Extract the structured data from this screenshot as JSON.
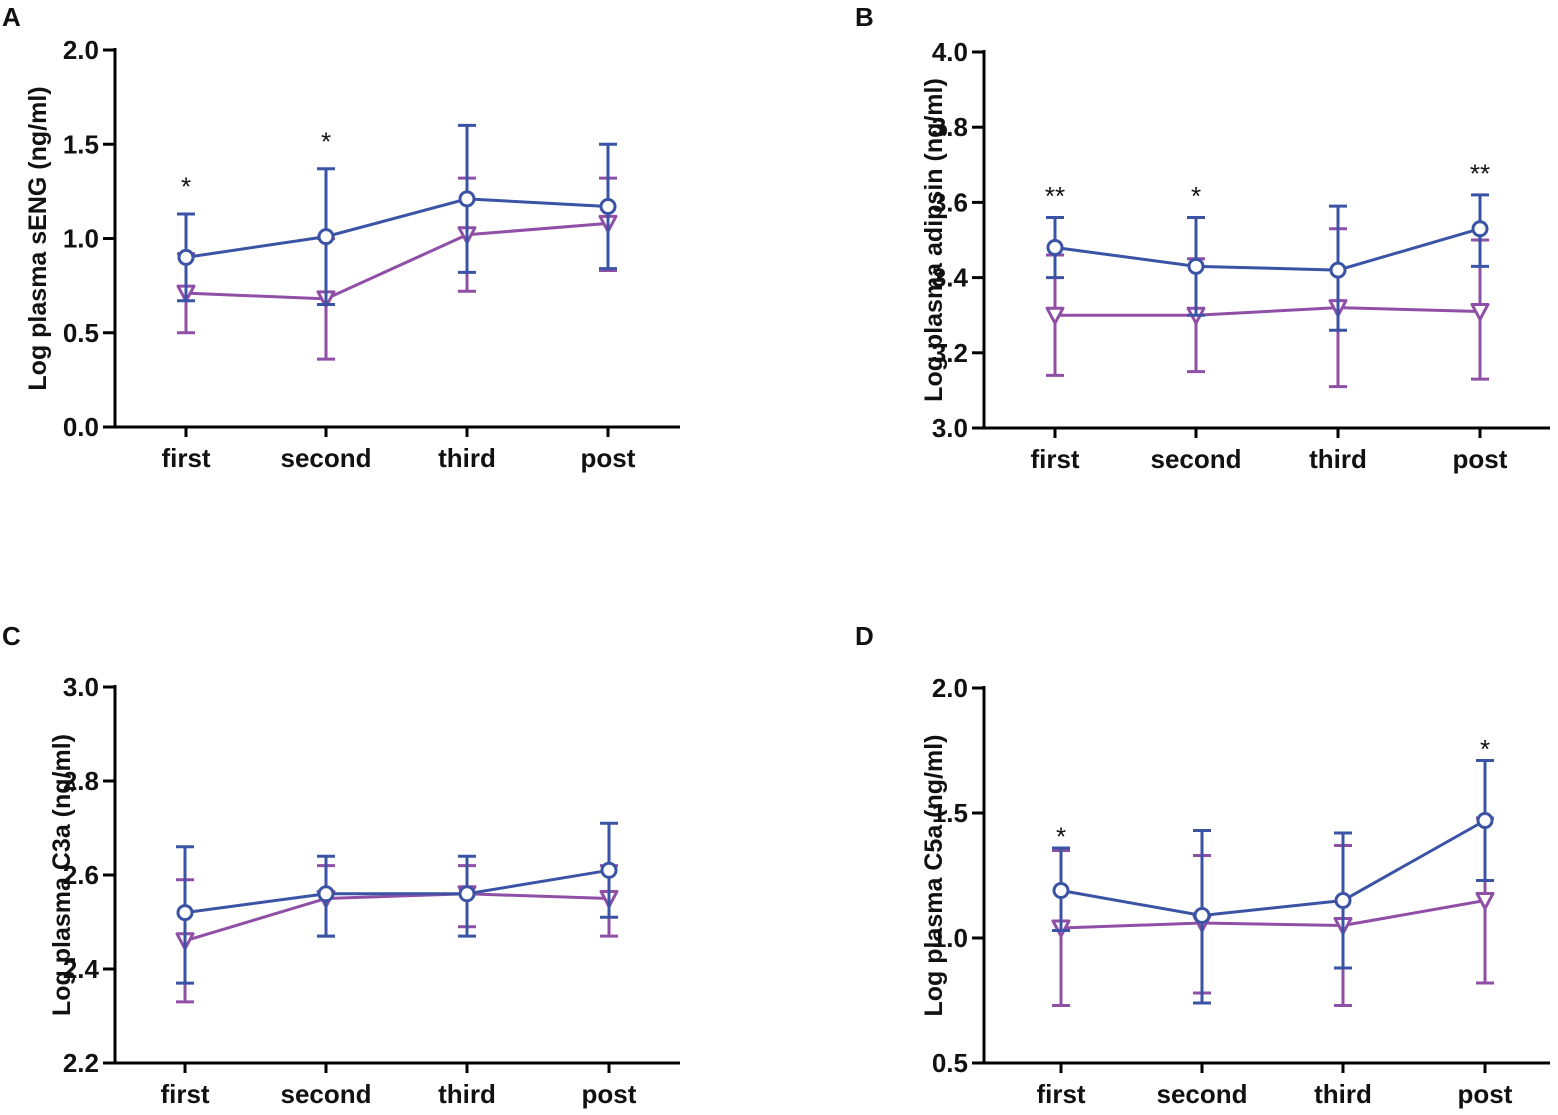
{
  "colors": {
    "series1": "#3a53a4",
    "series2": "#8f4fa6",
    "axis": "#000000"
  },
  "chart_data": [
    {
      "panel": "A",
      "type": "line",
      "categories": [
        "first",
        "second",
        "third",
        "post"
      ],
      "ylabel": "Log plasma sENG (ng/ml)",
      "ylim": [
        0.0,
        2.0
      ],
      "yticks": [
        0.0,
        0.5,
        1.0,
        1.5,
        2.0
      ],
      "ytick_labels": [
        "0.0",
        "0.5",
        "1.0",
        "1.5",
        "2.0"
      ],
      "series": [
        {
          "name": "series1",
          "marker": "circle",
          "values": [
            0.9,
            1.01,
            1.21,
            1.17
          ],
          "err_low": [
            0.67,
            0.65,
            0.82,
            0.84
          ],
          "err_high": [
            1.13,
            1.37,
            1.6,
            1.5
          ]
        },
        {
          "name": "series2",
          "marker": "triangle-down",
          "values": [
            0.71,
            0.68,
            1.02,
            1.08
          ],
          "err_low": [
            0.5,
            0.36,
            0.72,
            0.83
          ],
          "err_high": [
            0.92,
            1.0,
            1.32,
            1.32
          ]
        }
      ],
      "annotations": [
        {
          "category": "first",
          "text": "*",
          "y": 1.28
        },
        {
          "category": "second",
          "text": "*",
          "y": 1.52
        }
      ]
    },
    {
      "panel": "B",
      "type": "line",
      "categories": [
        "first",
        "second",
        "third",
        "post"
      ],
      "ylabel": "Log plasma adipsin (ng/ml)",
      "ylim": [
        3.0,
        4.0
      ],
      "yticks": [
        3.0,
        3.2,
        3.4,
        3.6,
        3.8,
        4.0
      ],
      "ytick_labels": [
        "3.0",
        "3.2",
        "3.4",
        "3.6",
        "3.8",
        "4.0"
      ],
      "series": [
        {
          "name": "series1",
          "marker": "circle",
          "values": [
            3.48,
            3.43,
            3.42,
            3.53
          ],
          "err_low": [
            3.4,
            3.3,
            3.26,
            3.43
          ],
          "err_high": [
            3.56,
            3.56,
            3.59,
            3.62
          ]
        },
        {
          "name": "series2",
          "marker": "triangle-down",
          "values": [
            3.3,
            3.3,
            3.32,
            3.31
          ],
          "err_low": [
            3.14,
            3.15,
            3.11,
            3.13
          ],
          "err_high": [
            3.46,
            3.45,
            3.53,
            3.5
          ]
        }
      ],
      "annotations": [
        {
          "category": "first",
          "text": "**",
          "y": 3.62
        },
        {
          "category": "second",
          "text": "*",
          "y": 3.62
        },
        {
          "category": "post",
          "text": "**",
          "y": 3.68
        }
      ]
    },
    {
      "panel": "C",
      "type": "line",
      "categories": [
        "first",
        "second",
        "third",
        "post"
      ],
      "ylabel": "Log plasma C3a (ng/ml)",
      "ylim": [
        2.2,
        3.0
      ],
      "yticks": [
        2.2,
        2.4,
        2.6,
        2.8,
        3.0
      ],
      "ytick_labels": [
        "2.2",
        "2.4",
        "2.6",
        "2.8",
        "3.0"
      ],
      "series": [
        {
          "name": "series1",
          "marker": "circle",
          "values": [
            2.52,
            2.56,
            2.56,
            2.61
          ],
          "err_low": [
            2.37,
            2.47,
            2.47,
            2.51
          ],
          "err_high": [
            2.66,
            2.64,
            2.64,
            2.71
          ]
        },
        {
          "name": "series2",
          "marker": "triangle-down",
          "values": [
            2.46,
            2.55,
            2.56,
            2.55
          ],
          "err_low": [
            2.33,
            2.47,
            2.49,
            2.47
          ],
          "err_high": [
            2.59,
            2.62,
            2.62,
            2.62
          ]
        }
      ],
      "annotations": []
    },
    {
      "panel": "D",
      "type": "line",
      "categories": [
        "first",
        "second",
        "third",
        "post"
      ],
      "ylabel": "Log plasma C5a (ng/ml)",
      "ylim": [
        0.5,
        2.0
      ],
      "yticks": [
        0.5,
        1.0,
        1.5,
        2.0
      ],
      "ytick_labels": [
        "0.5",
        "1.0",
        "1.5",
        "2.0"
      ],
      "series": [
        {
          "name": "series1",
          "marker": "circle",
          "values": [
            1.19,
            1.09,
            1.15,
            1.47
          ],
          "err_low": [
            1.03,
            0.74,
            0.88,
            1.23
          ],
          "err_high": [
            1.36,
            1.43,
            1.42,
            1.71
          ]
        },
        {
          "name": "series2",
          "marker": "triangle-down",
          "values": [
            1.04,
            1.06,
            1.05,
            1.15
          ],
          "err_low": [
            0.73,
            0.78,
            0.73,
            0.82
          ],
          "err_high": [
            1.35,
            1.33,
            1.37,
            1.48
          ]
        }
      ],
      "annotations": [
        {
          "category": "first",
          "text": "*",
          "y": 1.41
        },
        {
          "category": "post",
          "text": "*",
          "y": 1.76
        }
      ]
    }
  ]
}
